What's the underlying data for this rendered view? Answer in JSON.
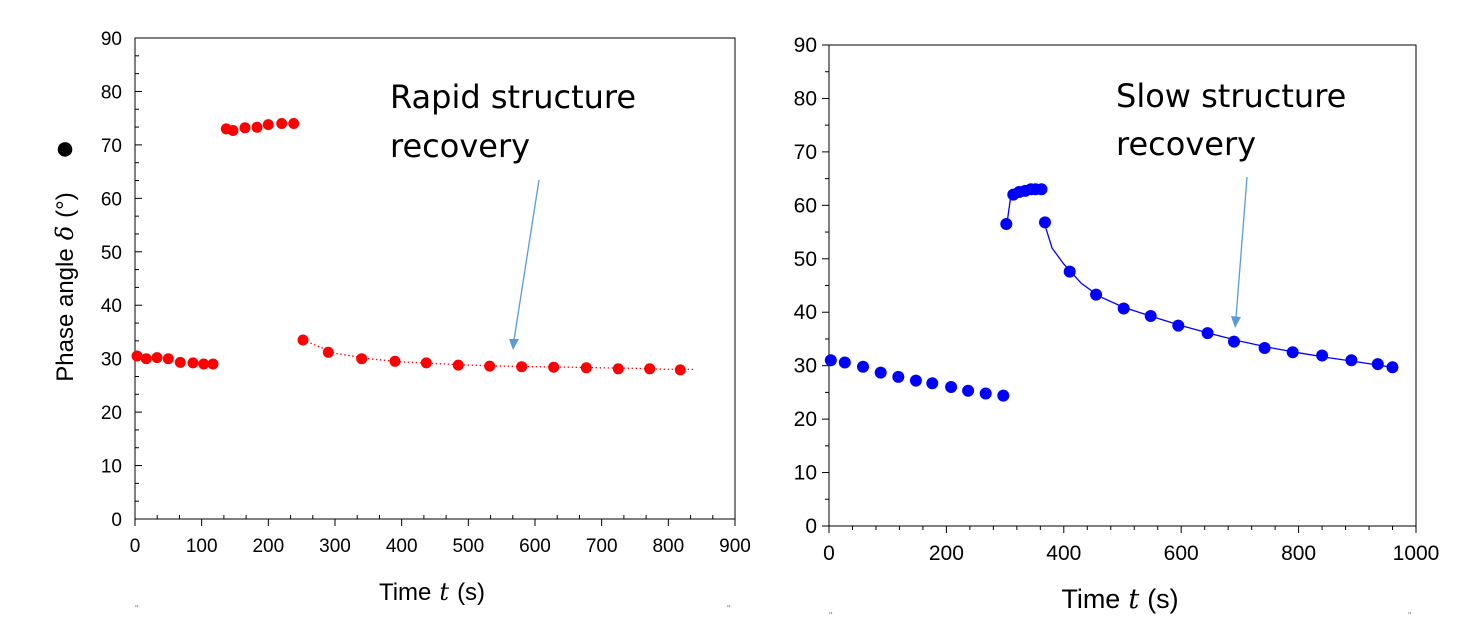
{
  "chart_data": [
    {
      "type": "scatter",
      "title": "",
      "xlabel": "Time",
      "xlabel_var": "t",
      "xlabel_unit": "(s)",
      "ylabel": "Phase angle",
      "ylabel_var": "δ",
      "ylabel_unit": "(°)",
      "xlim": [
        0,
        900
      ],
      "ylim": [
        0,
        90
      ],
      "xticks": [
        0,
        100,
        200,
        300,
        400,
        500,
        600,
        700,
        800,
        900
      ],
      "yticks": [
        0,
        10,
        20,
        30,
        40,
        50,
        60,
        70,
        80,
        90
      ],
      "grid": false,
      "legend": "none",
      "color": "#ff0000",
      "marker": "filled circle",
      "fit_line": "dotted",
      "annotation": {
        "text": [
          "Rapid structure",
          "recovery"
        ],
        "arrow_to": [
          570,
          32
        ]
      },
      "series": [
        {
          "values": [
            [
              3,
              30.5
            ],
            [
              17,
              30
            ],
            [
              33,
              30.2
            ],
            [
              50,
              30
            ],
            [
              68,
              29.3
            ],
            [
              87,
              29.2
            ],
            [
              103,
              29
            ],
            [
              117,
              29
            ],
            [
              137,
              73
            ],
            [
              147,
              72.7
            ],
            [
              165,
              73.2
            ],
            [
              183,
              73.3
            ],
            [
              200,
              73.8
            ],
            [
              220,
              74
            ],
            [
              238,
              74
            ],
            [
              252,
              33.5
            ],
            [
              290,
              31.2
            ],
            [
              340,
              30
            ],
            [
              390,
              29.5
            ],
            [
              437,
              29.2
            ],
            [
              485,
              28.8
            ],
            [
              532,
              28.6
            ],
            [
              580,
              28.5
            ],
            [
              628,
              28.4
            ],
            [
              677,
              28.3
            ],
            [
              725,
              28.1
            ],
            [
              772,
              28.1
            ],
            [
              818,
              27.9
            ]
          ]
        }
      ],
      "fit": [
        [
          252,
          33.5
        ],
        [
          300,
          31
        ],
        [
          350,
          30
        ],
        [
          400,
          29.4
        ],
        [
          450,
          29.1
        ],
        [
          500,
          28.8
        ],
        [
          550,
          28.6
        ],
        [
          600,
          28.5
        ],
        [
          650,
          28.4
        ],
        [
          700,
          28.3
        ],
        [
          750,
          28.2
        ],
        [
          800,
          28
        ],
        [
          840,
          28
        ]
      ]
    },
    {
      "type": "scatter",
      "title": "",
      "xlabel": "Time",
      "xlabel_var": "t",
      "xlabel_unit": "(s)",
      "ylabel": "",
      "xlim": [
        0,
        1000
      ],
      "ylim": [
        0,
        90
      ],
      "xticks": [
        0,
        200,
        400,
        600,
        800,
        1000
      ],
      "yticks": [
        0,
        10,
        20,
        30,
        40,
        50,
        60,
        70,
        80,
        90
      ],
      "grid": false,
      "legend": "none",
      "color": "#0000ff",
      "marker": "filled circle",
      "fit_line": "solid",
      "annotation": {
        "text": [
          "Slow structure",
          "recovery"
        ],
        "arrow_to": [
          690,
          36
        ]
      },
      "series": [
        {
          "values": [
            [
              3,
              31
            ],
            [
              27,
              30.6
            ],
            [
              58,
              29.8
            ],
            [
              88,
              28.7
            ],
            [
              118,
              27.9
            ],
            [
              148,
              27.2
            ],
            [
              176,
              26.7
            ],
            [
              208,
              26
            ],
            [
              237,
              25.3
            ],
            [
              267,
              24.8
            ],
            [
              297,
              24.4
            ],
            [
              302,
              56.5
            ],
            [
              314,
              62
            ],
            [
              324,
              62.5
            ],
            [
              334,
              62.7
            ],
            [
              344,
              63
            ],
            [
              352,
              63
            ],
            [
              362,
              63
            ],
            [
              368,
              56.8
            ],
            [
              410,
              47.6
            ],
            [
              455,
              43.3
            ],
            [
              502,
              40.7
            ],
            [
              548,
              39.3
            ],
            [
              595,
              37.5
            ],
            [
              645,
              36.1
            ],
            [
              690,
              34.5
            ],
            [
              742,
              33.3
            ],
            [
              790,
              32.5
            ],
            [
              840,
              31.9
            ],
            [
              890,
              31
            ],
            [
              935,
              30.3
            ],
            [
              960,
              29.7
            ]
          ]
        }
      ],
      "fit": [
        [
          303,
          56.5
        ],
        [
          310,
          62
        ]
      ],
      "fit2": [
        [
          366,
          57
        ],
        [
          380,
          52
        ],
        [
          400,
          49
        ],
        [
          430,
          45.4
        ],
        [
          460,
          43
        ],
        [
          500,
          41
        ],
        [
          550,
          39.2
        ],
        [
          600,
          37.5
        ],
        [
          650,
          36
        ],
        [
          700,
          34.6
        ],
        [
          750,
          33.4
        ],
        [
          800,
          32.4
        ],
        [
          850,
          31.5
        ],
        [
          900,
          30.7
        ],
        [
          960,
          29.7
        ]
      ]
    }
  ],
  "legend_marker": "●",
  "footnote_glyph": "\""
}
